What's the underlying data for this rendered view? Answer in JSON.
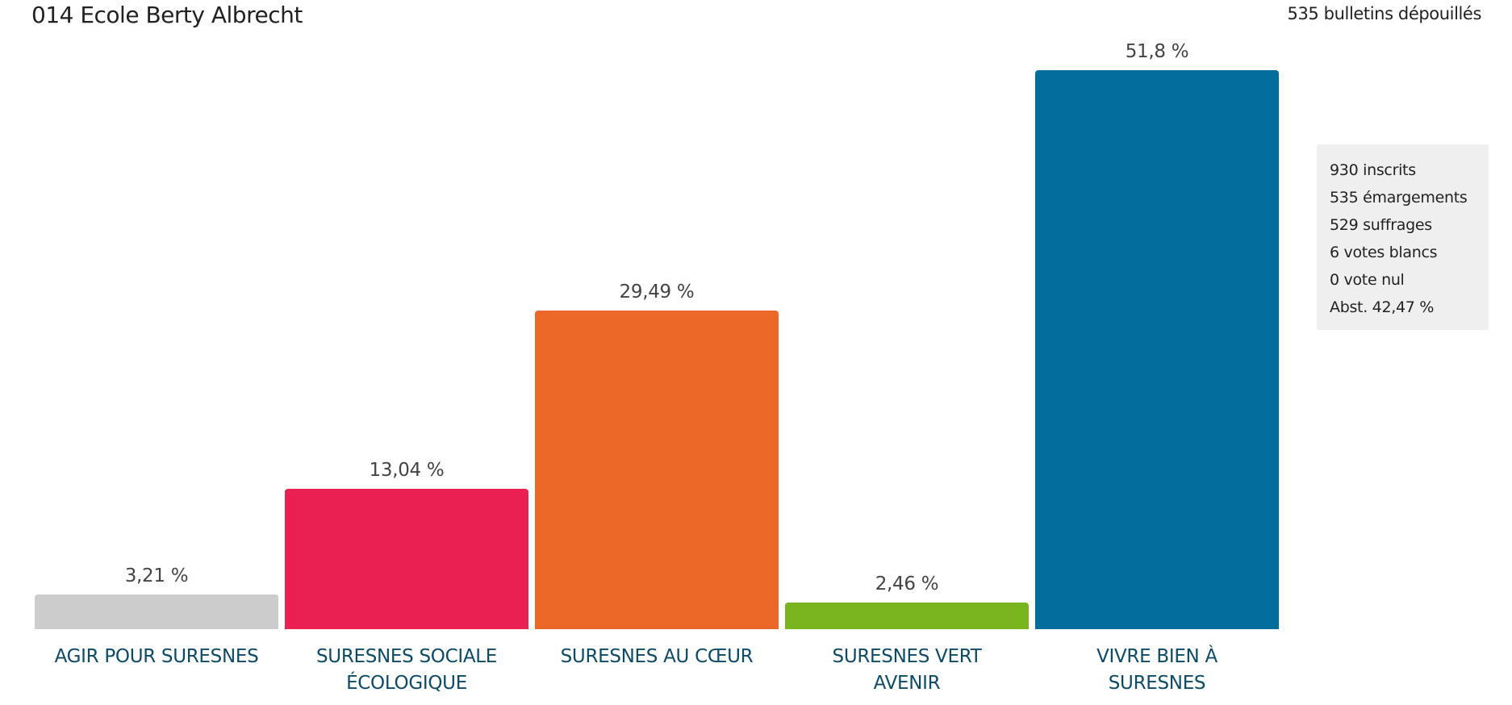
{
  "header": {
    "title": "014 Ecole Berty Albrecht",
    "ballots_count": "535 bulletins dépouillés"
  },
  "stats": [
    "930 inscrits",
    "535 émargements",
    "529 suffrages",
    "6 votes blancs",
    "0 vote nul",
    "Abst. 42,47 %"
  ],
  "chart_data": {
    "type": "bar",
    "title": "014 Ecole Berty Albrecht",
    "xlabel": "",
    "ylabel": "",
    "ylim": [
      0,
      51.8
    ],
    "grid": false,
    "categories": [
      [
        "AGIR POUR SURESNES"
      ],
      [
        "SURESNES SOCIALE",
        "ÉCOLOGIQUE"
      ],
      [
        "SURESNES AU CŒUR"
      ],
      [
        "SURESNES VERT",
        "AVENIR"
      ],
      [
        "VIVRE BIEN À",
        "SURESNES"
      ]
    ],
    "values": [
      3.21,
      13.04,
      29.49,
      2.46,
      51.8
    ],
    "value_labels": [
      "3,21 %",
      "13,04 %",
      "29,49 %",
      "2,46 %",
      "51,8 %"
    ],
    "colors": [
      "#cccccc",
      "#ea1f52",
      "#ec6829",
      "#7ab51f",
      "#036e9e"
    ]
  }
}
